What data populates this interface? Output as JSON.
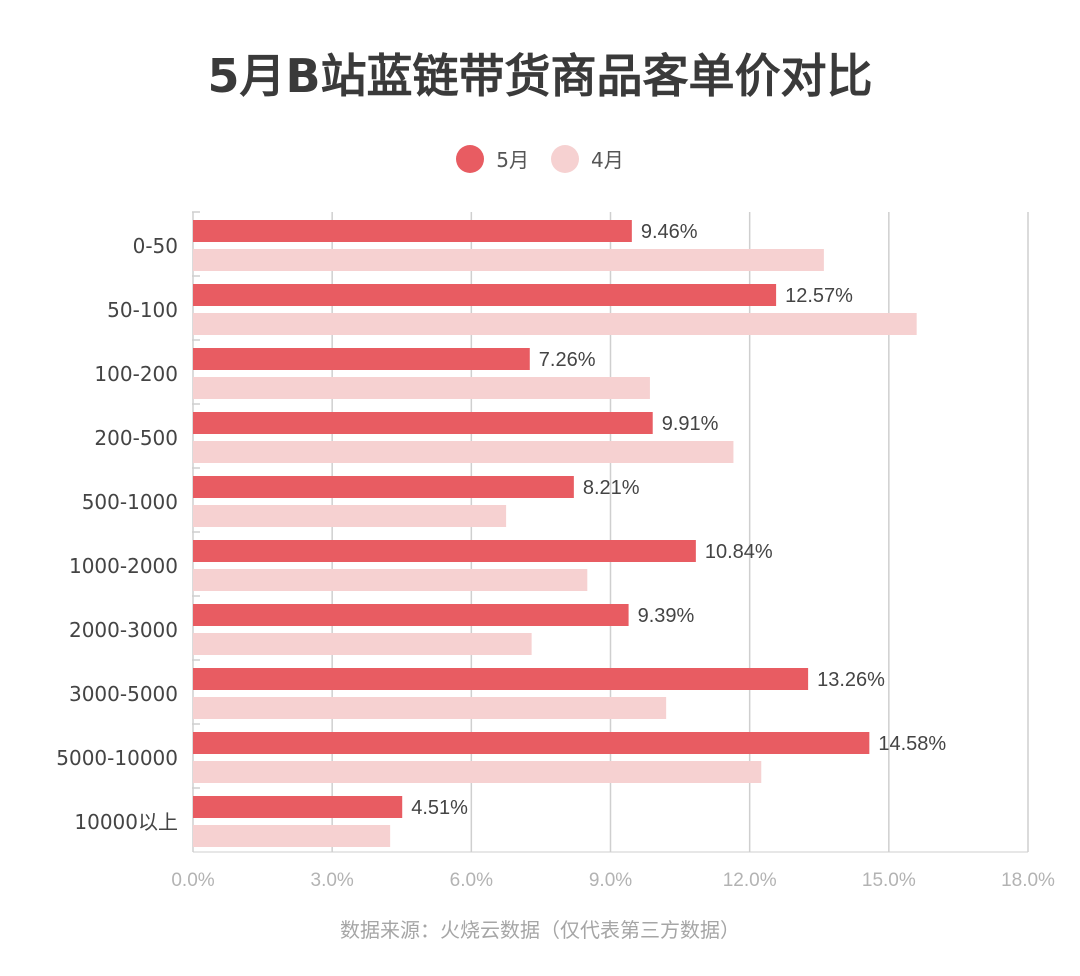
{
  "chart_data": {
    "type": "bar",
    "orientation": "horizontal",
    "title": "5月B站蓝链带货商品客单价对比",
    "categories": [
      "0-50",
      "50-100",
      "100-200",
      "200-500",
      "500-1000",
      "1000-2000",
      "2000-3000",
      "3000-5000",
      "5000-10000",
      "10000以上"
    ],
    "series": [
      {
        "name": "5月",
        "color": "#e85c62",
        "values": [
          9.46,
          12.57,
          7.26,
          9.91,
          8.21,
          10.84,
          9.39,
          13.26,
          14.58,
          4.51
        ],
        "labels": [
          "9.46%",
          "12.57%",
          "7.26%",
          "9.91%",
          "8.21%",
          "10.84%",
          "9.39%",
          "13.26%",
          "14.58%",
          "4.51%"
        ]
      },
      {
        "name": "4月",
        "color": "#f6d1d1",
        "values": [
          13.6,
          15.6,
          9.85,
          11.65,
          6.75,
          8.5,
          7.3,
          10.2,
          12.25,
          4.25
        ]
      }
    ],
    "xlim": [
      0,
      18
    ],
    "xticks": [
      "0.0%",
      "3.0%",
      "6.0%",
      "9.0%",
      "12.0%",
      "15.0%",
      "18.0%"
    ],
    "grid": true,
    "legend_position": "top-center",
    "source": "数据来源：火烧云数据（仅代表第三方数据）"
  }
}
